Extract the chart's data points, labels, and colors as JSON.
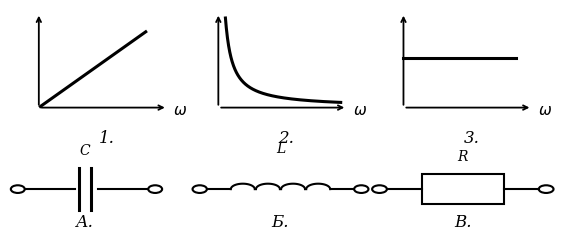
{
  "background": "#ffffff",
  "line_color": "#000000",
  "line_width": 2.2,
  "graph1_label": "1.",
  "graph2_label": "2.",
  "graph3_label": "3.",
  "circuit_A_label": "А.",
  "circuit_B_label": "Б.",
  "circuit_V_label": "В.",
  "component_C": "C",
  "component_L": "L",
  "component_R": "R",
  "omega_label": "ω",
  "label_fontsize": 11,
  "num_label_fontsize": 12,
  "comp_label_fontsize": 10,
  "axis_linewidth": 1.3,
  "wire_lw": 1.5,
  "cap_lw": 2.2
}
